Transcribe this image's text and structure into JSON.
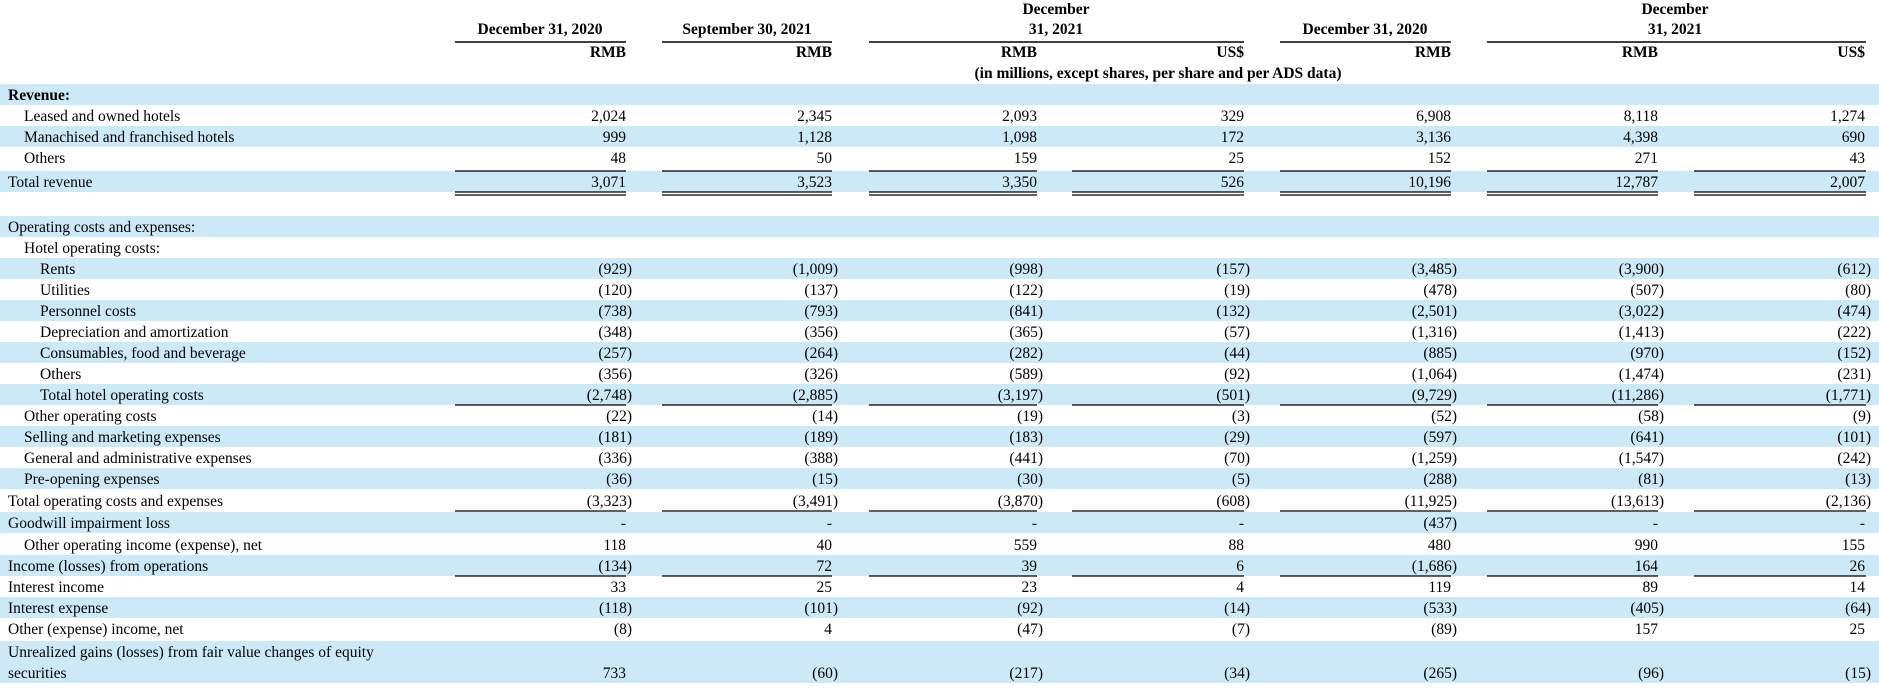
{
  "header": {
    "col_dates": [
      "December 31, 2020",
      "September 30, 2021",
      "December 31, 2021",
      "December 31, 2020",
      "December 31, 2021"
    ],
    "currencies": [
      "RMB",
      "RMB",
      "RMB",
      "US$",
      "RMB",
      "RMB",
      "US$"
    ],
    "units_note": "(in millions, except shares, per share and per ADS data)"
  },
  "rows": [
    {
      "label": "Revenue:",
      "bold": true,
      "values": []
    },
    {
      "label": "Leased and owned hotels",
      "values": [
        "2,024",
        "2,345",
        "2,093",
        "329",
        "6,908",
        "8,118",
        "1,274"
      ]
    },
    {
      "label": "Manachised and franchised hotels",
      "values": [
        "999",
        "1,128",
        "1,098",
        "172",
        "3,136",
        "4,398",
        "690"
      ]
    },
    {
      "label": "Others",
      "values": [
        "48",
        "50",
        "159",
        "25",
        "152",
        "271",
        "43"
      ]
    },
    {
      "label": "Total revenue",
      "values": [
        "3,071",
        "3,523",
        "3,350",
        "526",
        "10,196",
        "12,787",
        "2,007"
      ]
    },
    {
      "label": "",
      "values": []
    },
    {
      "label": "Operating costs and expenses:",
      "values": []
    },
    {
      "label": "Hotel operating costs:",
      "values": []
    },
    {
      "label": "Rents",
      "values": [
        "(929)",
        "(1,009)",
        "(998)",
        "(157)",
        "(3,485)",
        "(3,900)",
        "(612)"
      ]
    },
    {
      "label": "Utilities",
      "values": [
        "(120)",
        "(137)",
        "(122)",
        "(19)",
        "(478)",
        "(507)",
        "(80)"
      ]
    },
    {
      "label": "Personnel costs",
      "values": [
        "(738)",
        "(793)",
        "(841)",
        "(132)",
        "(2,501)",
        "(3,022)",
        "(474)"
      ]
    },
    {
      "label": "Depreciation and amortization",
      "values": [
        "(348)",
        "(356)",
        "(365)",
        "(57)",
        "(1,316)",
        "(1,413)",
        "(222)"
      ]
    },
    {
      "label": "Consumables, food and beverage",
      "values": [
        "(257)",
        "(264)",
        "(282)",
        "(44)",
        "(885)",
        "(970)",
        "(152)"
      ]
    },
    {
      "label": "Others",
      "values": [
        "(356)",
        "(326)",
        "(589)",
        "(92)",
        "(1,064)",
        "(1,474)",
        "(231)"
      ]
    },
    {
      "label": "Total hotel operating costs",
      "values": [
        "(2,748)",
        "(2,885)",
        "(3,197)",
        "(501)",
        "(9,729)",
        "(11,286)",
        "(1,771)"
      ]
    },
    {
      "label": "Other operating costs",
      "values": [
        "(22)",
        "(14)",
        "(19)",
        "(3)",
        "(52)",
        "(58)",
        "(9)"
      ]
    },
    {
      "label": "Selling and marketing expenses",
      "values": [
        "(181)",
        "(189)",
        "(183)",
        "(29)",
        "(597)",
        "(641)",
        "(101)"
      ]
    },
    {
      "label": "General and administrative expenses",
      "values": [
        "(336)",
        "(388)",
        "(441)",
        "(70)",
        "(1,259)",
        "(1,547)",
        "(242)"
      ]
    },
    {
      "label": "Pre-opening expenses",
      "values": [
        "(36)",
        "(15)",
        "(30)",
        "(5)",
        "(288)",
        "(81)",
        "(13)"
      ]
    },
    {
      "label": "Total operating costs and expenses",
      "values": [
        "(3,323)",
        "(3,491)",
        "(3,870)",
        "(608)",
        "(11,925)",
        "(13,613)",
        "(2,136)"
      ]
    },
    {
      "label": "Goodwill impairment loss",
      "values": [
        "-",
        "-",
        "-",
        "-",
        "(437)",
        "-",
        "-"
      ]
    },
    {
      "label": "Other operating income (expense), net",
      "values": [
        "118",
        "40",
        "559",
        "88",
        "480",
        "990",
        "155"
      ]
    },
    {
      "label": "Income (losses) from operations",
      "values": [
        "(134)",
        "72",
        "39",
        "6",
        "(1,686)",
        "164",
        "26"
      ]
    },
    {
      "label": "Interest income",
      "values": [
        "33",
        "25",
        "23",
        "4",
        "119",
        "89",
        "14"
      ]
    },
    {
      "label": "Interest expense",
      "values": [
        "(118)",
        "(101)",
        "(92)",
        "(14)",
        "(533)",
        "(405)",
        "(64)"
      ]
    },
    {
      "label": "Other (expense) income, net",
      "values": [
        "(8)",
        "4",
        "(47)",
        "(7)",
        "(89)",
        "157",
        "25"
      ]
    },
    {
      "label": "Unrealized gains (losses) from fair value changes of equity",
      "values": []
    },
    {
      "label": "securities",
      "values": [
        "733",
        "(60)",
        "(217)",
        "(34)",
        "(265)",
        "(96)",
        "(15)"
      ]
    }
  ],
  "colors": {
    "band": "#cce9f8",
    "text": "#000000"
  }
}
